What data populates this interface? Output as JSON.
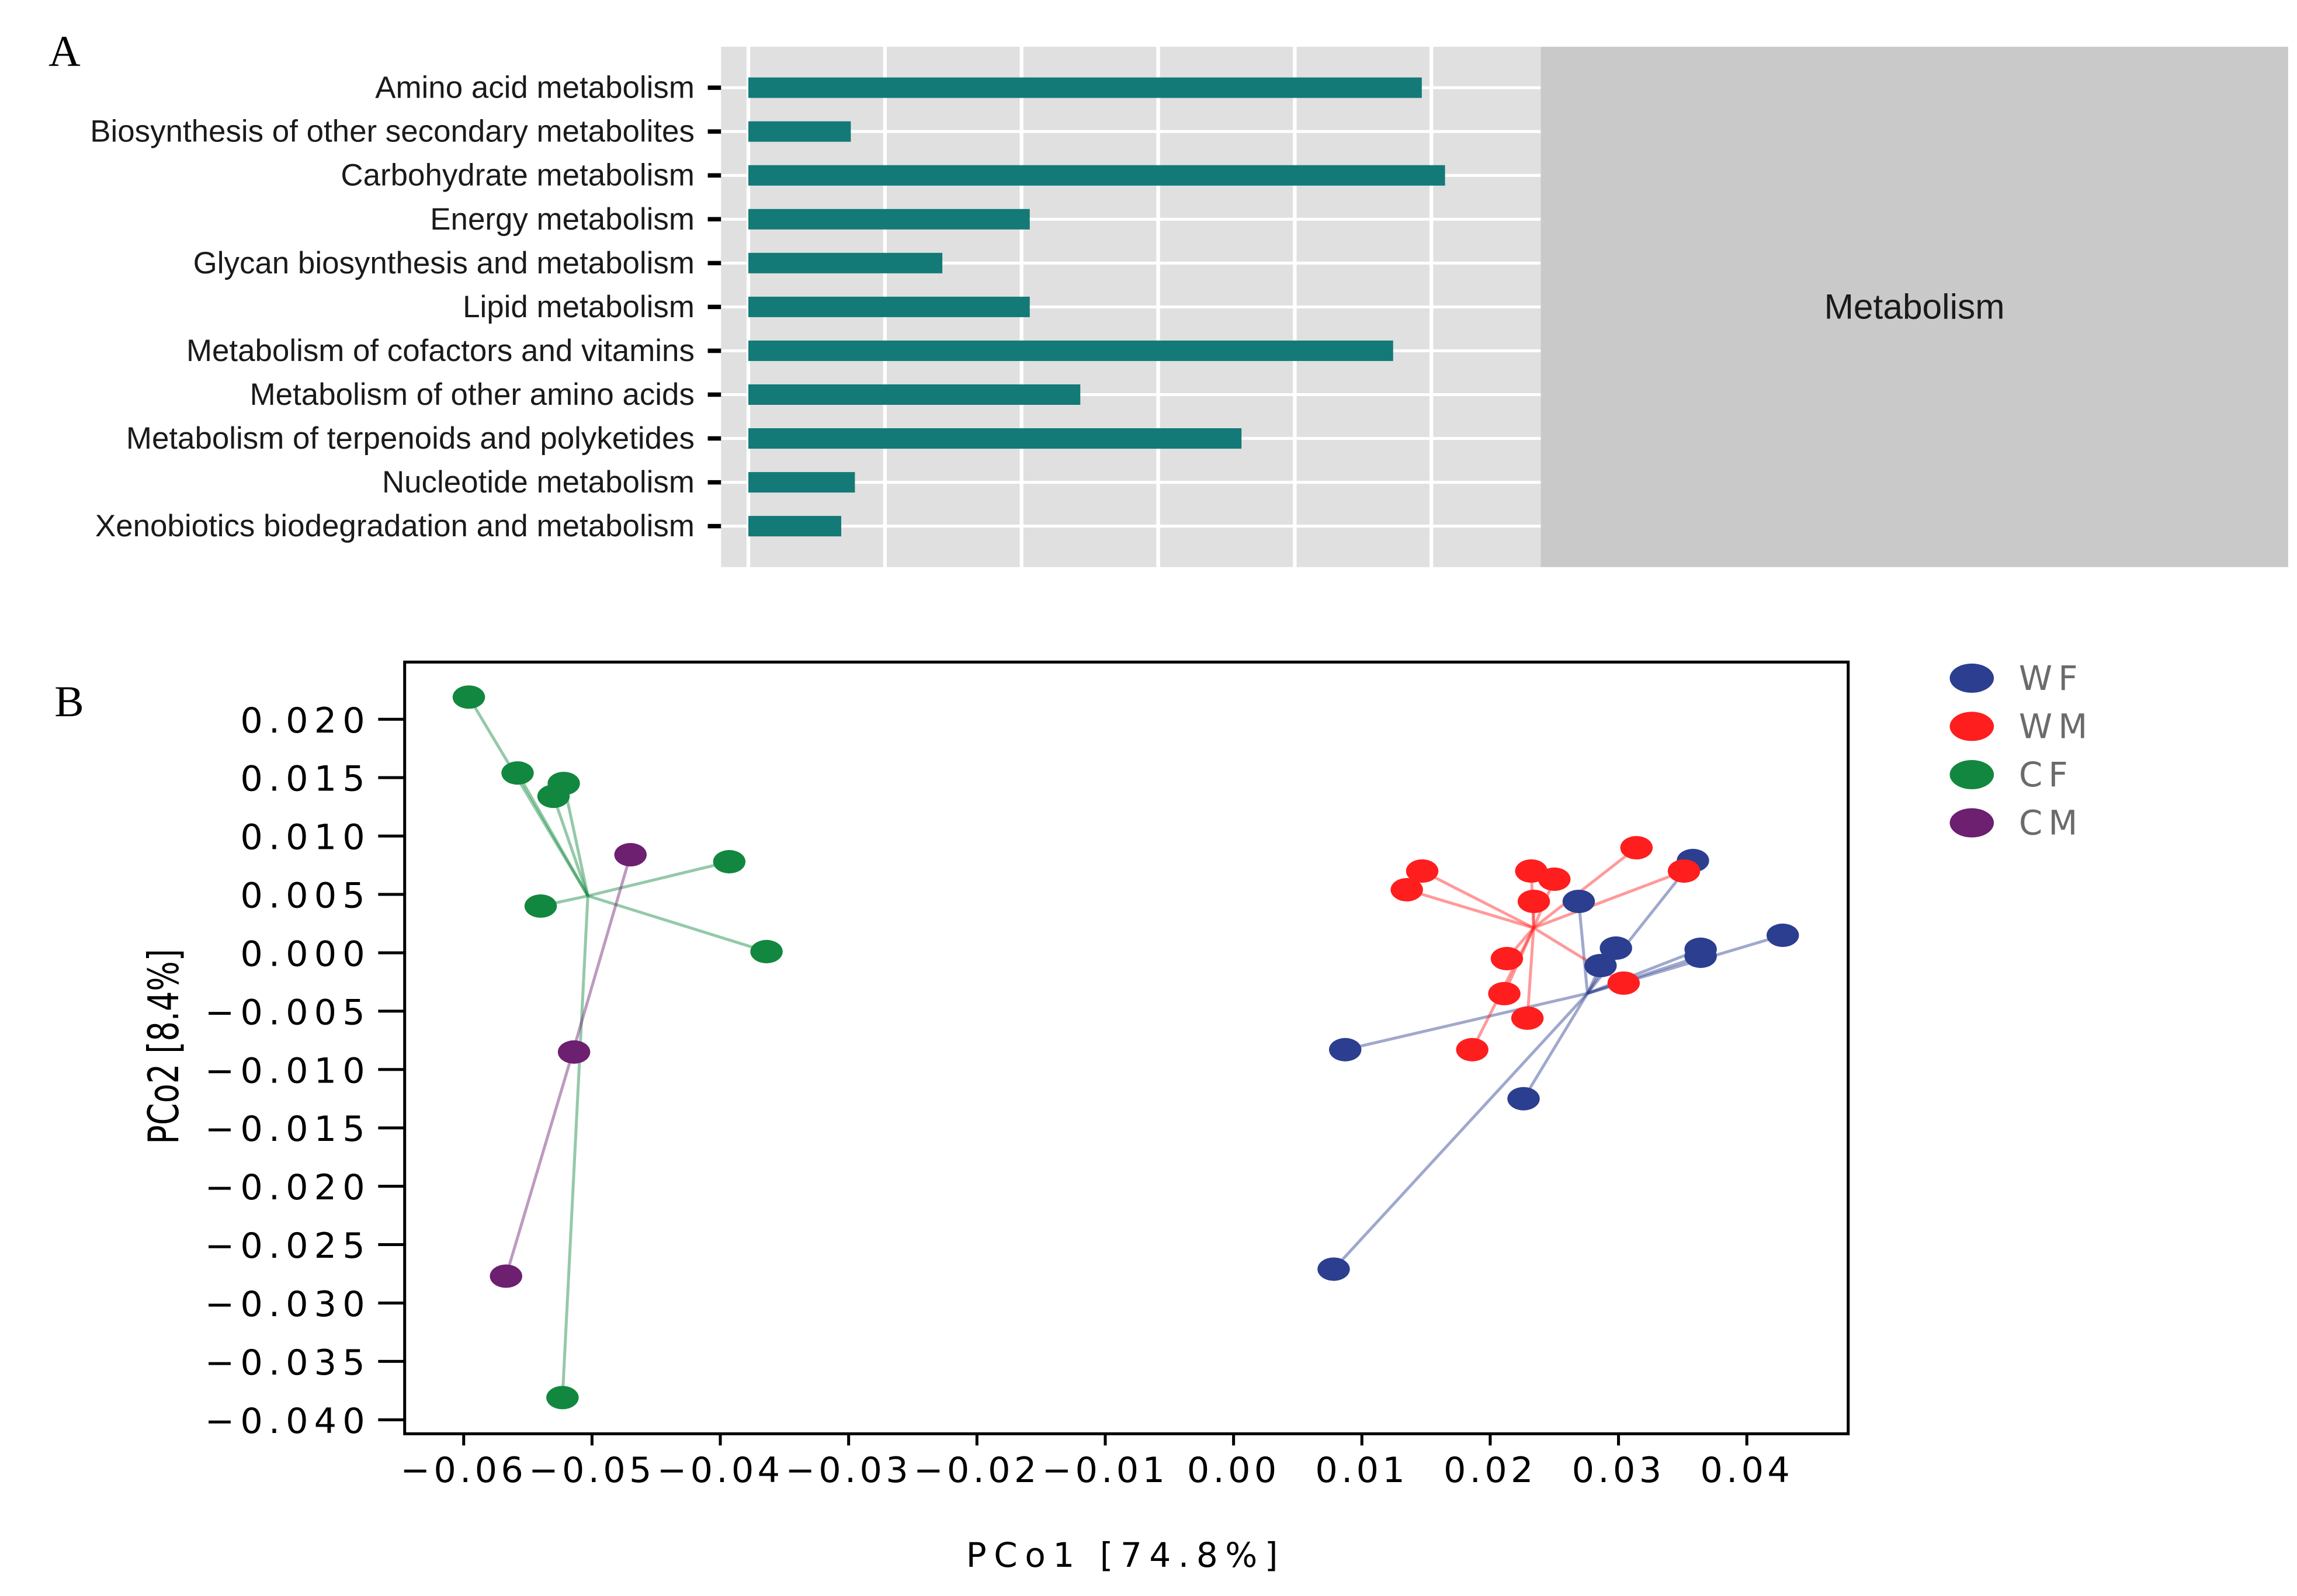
{
  "chart_data": [
    {
      "type": "bar",
      "horizontal": true,
      "panel_label": "A",
      "categories": [
        "Amino acid metabolism",
        "Biosynthesis of other secondary metabolites",
        "Carbohydrate metabolism",
        "Energy metabolism",
        "Glycan biosynthesis and metabolism",
        "Lipid metabolism",
        "Metabolism of cofactors and vitamins",
        "Metabolism of other amino acids",
        "Metabolism of terpenoids and polyketides",
        "Nucleotide metabolism",
        "Xenobiotics biodegradation and metabolism"
      ],
      "values": [
        4.93,
        0.75,
        5.1,
        2.06,
        1.42,
        2.06,
        4.72,
        2.43,
        3.61,
        0.78,
        0.68
      ],
      "xlim": [
        -0.2,
        5.8
      ],
      "x_gridlines": [
        0,
        1,
        2,
        3,
        4,
        5
      ],
      "grid": true,
      "facet_label": "Metabolism",
      "bar_color": "#137a77",
      "panel_background": "#e0e0e0",
      "strip_background": "#c9c9c9"
    },
    {
      "type": "scatter",
      "panel_label": "B",
      "xlabel": "PCo1 [74.8%]",
      "ylabel": "PCo2 [8.4%]",
      "xlim": [
        -0.0646,
        0.0479
      ],
      "ylim": [
        -0.0412,
        0.0249
      ],
      "x_ticks": [
        -0.06,
        -0.05,
        -0.04,
        -0.03,
        -0.02,
        -0.01,
        0.0,
        0.01,
        0.02,
        0.03,
        0.04
      ],
      "x_tick_labels": [
        "−0.06",
        "−0.05",
        "−0.04",
        "−0.03",
        "−0.02",
        "−0.01",
        "0.00",
        "0.01",
        "0.02",
        "0.03",
        "0.04"
      ],
      "y_ticks": [
        0.02,
        0.015,
        0.01,
        0.005,
        0.0,
        -0.005,
        -0.01,
        -0.015,
        -0.02,
        -0.025,
        -0.03,
        -0.035,
        -0.04
      ],
      "y_tick_labels": [
        "0.020",
        "0.015",
        "0.010",
        "0.005",
        "0.000",
        "−0.005",
        "−0.010",
        "−0.015",
        "−0.020",
        "−0.025",
        "−0.030",
        "−0.035",
        "−0.040"
      ],
      "grid": false,
      "legend_position": "right",
      "lines_to_group_centroid": true,
      "series": [
        {
          "name": "WF",
          "color": "#2c3e8f",
          "points": [
            [
              0.0358,
              0.0079
            ],
            [
              0.0269,
              0.0044
            ],
            [
              0.0298,
              0.0004
            ],
            [
              0.0286,
              -0.0011
            ],
            [
              0.0364,
              0.0003
            ],
            [
              0.0364,
              -0.0003
            ],
            [
              0.0428,
              0.0015
            ],
            [
              0.0087,
              -0.0083
            ],
            [
              0.0226,
              -0.0125
            ],
            [
              0.0078,
              -0.0271
            ]
          ]
        },
        {
          "name": "WM",
          "color": "#fe1e1e",
          "points": [
            [
              0.0314,
              0.009
            ],
            [
              0.0147,
              0.007
            ],
            [
              0.0232,
              0.007
            ],
            [
              0.025,
              0.0063
            ],
            [
              0.0351,
              0.007
            ],
            [
              0.0135,
              0.0054
            ],
            [
              0.0234,
              0.0044
            ],
            [
              0.0213,
              -0.0005
            ],
            [
              0.0211,
              -0.0035
            ],
            [
              0.0304,
              -0.0026
            ],
            [
              0.0229,
              -0.0056
            ],
            [
              0.0186,
              -0.0083
            ]
          ]
        },
        {
          "name": "CF",
          "color": "#12873f",
          "points": [
            [
              -0.0596,
              0.0219
            ],
            [
              -0.0558,
              0.0154
            ],
            [
              -0.0522,
              0.0145
            ],
            [
              -0.053,
              0.0134
            ],
            [
              -0.0393,
              0.0078
            ],
            [
              -0.054,
              0.004
            ],
            [
              -0.0364,
              0.0001
            ],
            [
              -0.0523,
              -0.0381
            ]
          ]
        },
        {
          "name": "CM",
          "color": "#6d1f70",
          "points": [
            [
              -0.047,
              0.0084
            ],
            [
              -0.0514,
              -0.0085
            ],
            [
              -0.0567,
              -0.0277
            ]
          ]
        }
      ]
    }
  ]
}
